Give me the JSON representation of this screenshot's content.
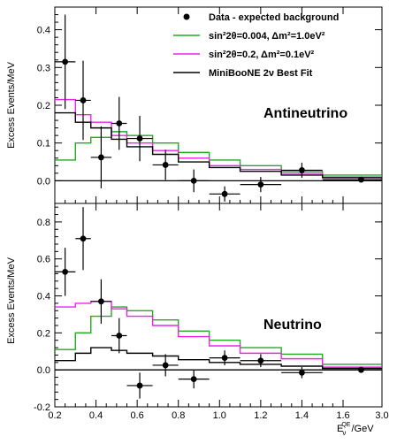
{
  "chart_data": [
    {
      "type": "line",
      "panel": "top",
      "annotation": "Antineutrino",
      "ylabel": "Excess Events/MeV",
      "xlabel": "",
      "xlim": [
        0.2,
        3.0
      ],
      "ylim": [
        -0.06,
        0.46
      ],
      "yticks": [
        0.0,
        0.1,
        0.2,
        0.3,
        0.4
      ],
      "ytick_labels": [
        "0.0",
        "0.1",
        "0.2",
        "0.3",
        "0.4"
      ],
      "x_bin_edges": [
        0.2,
        0.3,
        0.375,
        0.475,
        0.55,
        0.675,
        0.8,
        0.95,
        1.1,
        1.3,
        1.5,
        3.0
      ],
      "legend": {
        "placement": "top-right",
        "entries": [
          {
            "label": "Data - expected background",
            "color": "#000000",
            "marker": "dot"
          },
          {
            "label": "sin²2θ=0.004, Δm²=1.0eV²",
            "color": "#22aa22",
            "marker": "line"
          },
          {
            "label": "sin²2θ=0.2, Δm²=0.1eV²",
            "color": "#ee22ee",
            "marker": "line"
          },
          {
            "label": "MiniBooNE 2ν Best Fit",
            "color": "#000000",
            "marker": "line"
          }
        ]
      },
      "series": [
        {
          "name": "Data - expected background",
          "kind": "points",
          "color": "#000000",
          "x": [
            0.25,
            0.3375,
            0.425,
            0.5125,
            0.6125,
            0.7375,
            0.875,
            1.025,
            1.2,
            1.4,
            2.25
          ],
          "y": [
            0.315,
            0.213,
            0.062,
            0.152,
            0.112,
            0.042,
            0.0,
            -0.035,
            -0.01,
            0.028,
            0.003
          ],
          "yerr": [
            0.125,
            0.105,
            0.082,
            0.07,
            0.06,
            0.04,
            0.03,
            0.02,
            0.02,
            0.02,
            0.006
          ]
        },
        {
          "name": "sin²2θ=0.004, Δm²=1.0eV²",
          "kind": "step",
          "color": "#22aa22",
          "values": [
            0.055,
            0.1,
            0.115,
            0.13,
            0.12,
            0.1,
            0.075,
            0.055,
            0.04,
            0.025,
            0.015
          ]
        },
        {
          "name": "sin²2θ=0.2, Δm²=0.1eV²",
          "kind": "step",
          "color": "#ee22ee",
          "values": [
            0.215,
            0.175,
            0.155,
            0.12,
            0.1,
            0.08,
            0.06,
            0.04,
            0.03,
            0.02,
            0.01
          ]
        },
        {
          "name": "MiniBooNE 2ν Best Fit",
          "kind": "step",
          "color": "#000000",
          "values": [
            0.18,
            0.155,
            0.14,
            0.11,
            0.09,
            0.07,
            0.05,
            0.035,
            0.025,
            0.015,
            0.008
          ]
        }
      ]
    },
    {
      "type": "line",
      "panel": "bottom",
      "annotation": "Neutrino",
      "ylabel": "Excess Events/MeV",
      "xlabel": "Eν^QE/GeV",
      "xlabel_main": "E",
      "xlabel_sub": "ν",
      "xlabel_sup": "QE",
      "xlabel_tail": "/GeV",
      "xlim": [
        0.2,
        3.0
      ],
      "ylim": [
        -0.2,
        0.9
      ],
      "yticks": [
        -0.2,
        0.0,
        0.2,
        0.4,
        0.6,
        0.8
      ],
      "ytick_labels": [
        "-0.2",
        "0.0",
        "0.2",
        "0.4",
        "0.6",
        "0.8"
      ],
      "xticks": [
        0.2,
        0.4,
        0.6,
        0.8,
        1.0,
        1.2,
        1.4,
        1.6,
        3.0
      ],
      "xtick_labels": [
        "0.2",
        "0.4",
        "0.6",
        "0.8",
        "1.0",
        "1.2",
        "1.4",
        "1.6",
        "3.0"
      ],
      "x_bin_edges": [
        0.2,
        0.3,
        0.375,
        0.475,
        0.55,
        0.675,
        0.8,
        0.95,
        1.1,
        1.3,
        1.5,
        3.0
      ],
      "series": [
        {
          "name": "Data - expected background",
          "kind": "points",
          "color": "#000000",
          "x": [
            0.25,
            0.3375,
            0.425,
            0.5125,
            0.6125,
            0.7375,
            0.875,
            1.025,
            1.2,
            1.4,
            2.25
          ],
          "y": [
            0.53,
            0.71,
            0.37,
            0.185,
            -0.085,
            0.025,
            -0.05,
            0.065,
            0.05,
            -0.015,
            0.0
          ],
          "yerr": [
            0.13,
            0.17,
            0.12,
            0.095,
            0.07,
            0.06,
            0.05,
            0.04,
            0.035,
            0.03,
            0.01
          ]
        },
        {
          "name": "sin²2θ=0.004, Δm²=1.0eV²",
          "kind": "step",
          "color": "#22aa22",
          "values": [
            0.11,
            0.2,
            0.29,
            0.34,
            0.32,
            0.27,
            0.21,
            0.16,
            0.12,
            0.085,
            0.03
          ]
        },
        {
          "name": "sin²2θ=0.2, Δm²=0.1eV²",
          "kind": "step",
          "color": "#ee22ee",
          "values": [
            0.34,
            0.36,
            0.37,
            0.33,
            0.29,
            0.24,
            0.18,
            0.13,
            0.09,
            0.06,
            0.015
          ]
        },
        {
          "name": "MiniBooNE 2ν Best Fit",
          "kind": "step",
          "color": "#000000",
          "values": [
            0.05,
            0.09,
            0.12,
            0.105,
            0.09,
            0.075,
            0.055,
            0.04,
            0.03,
            0.02,
            0.008
          ]
        }
      ]
    }
  ]
}
